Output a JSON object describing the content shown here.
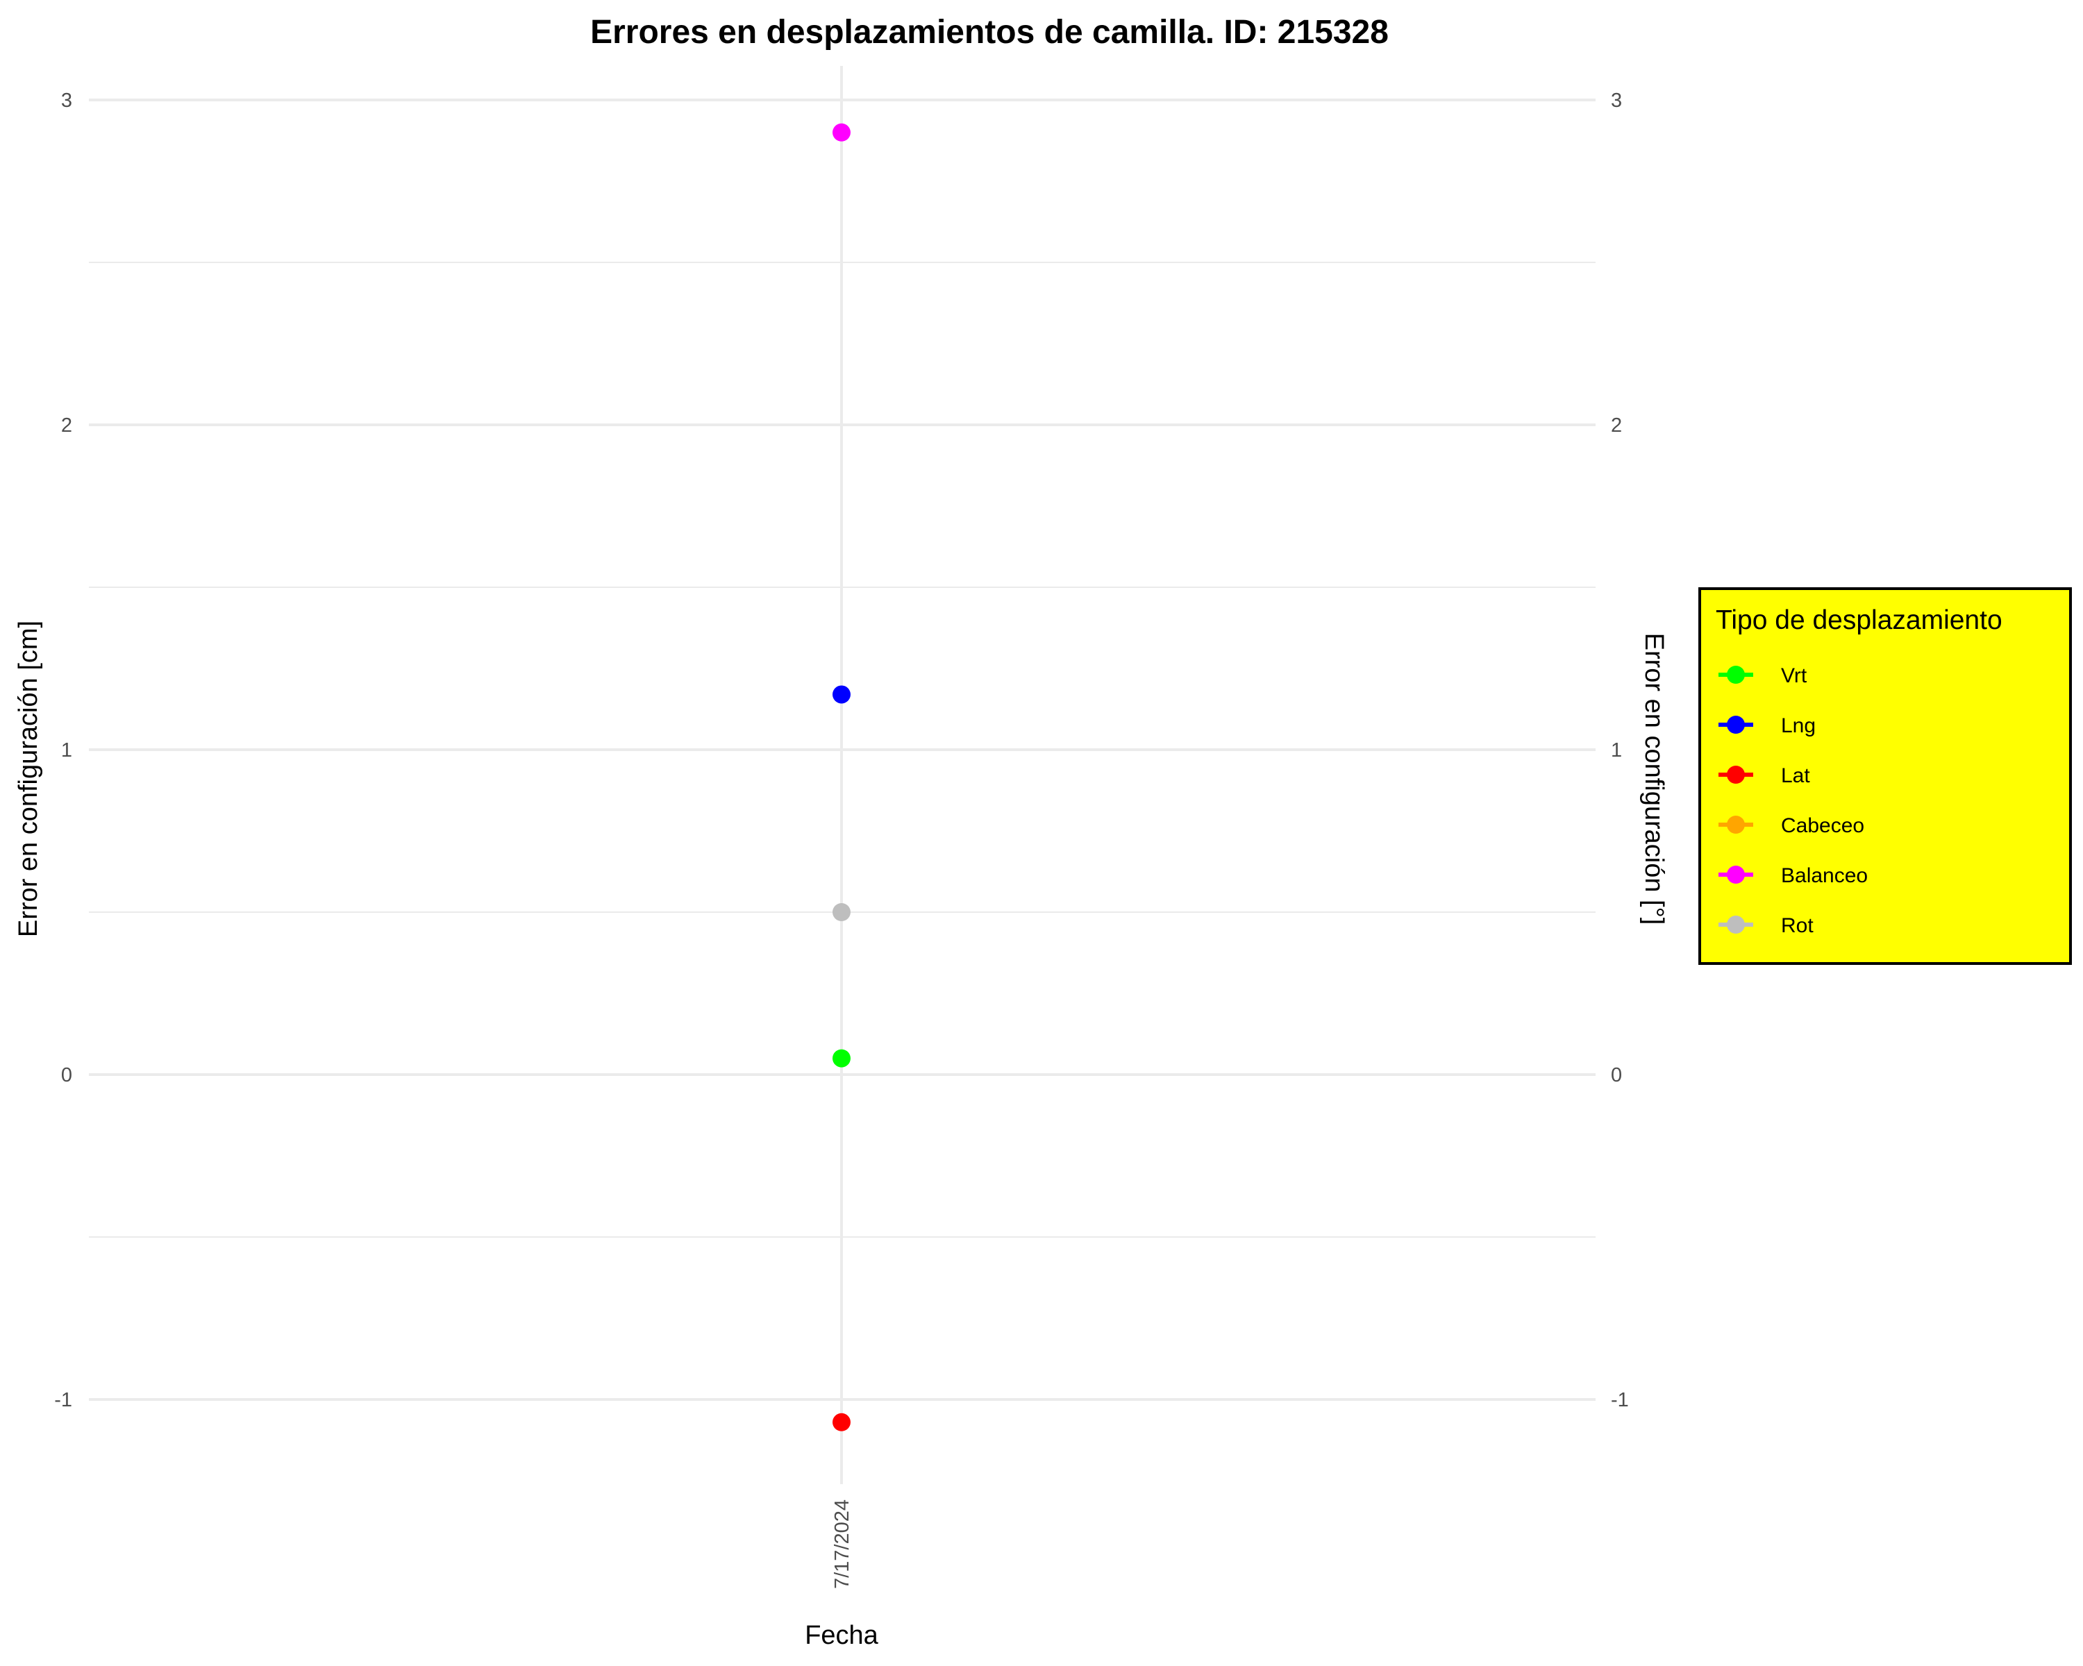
{
  "chart_data": {
    "type": "scatter",
    "title": "Errores en desplazamientos de camilla. ID: 215328",
    "xlabel": "Fecha",
    "ylabel_left": "Error en configuración [cm]",
    "ylabel_right": "Error en configuración [°]",
    "categories": [
      "7/17/2024"
    ],
    "ylim": [
      -1.3,
      3.1
    ],
    "yticks": [
      "3",
      "2",
      "1",
      "0",
      "-1"
    ],
    "ytick_values": [
      3,
      2,
      1,
      0,
      -1
    ],
    "grid": true,
    "legend": {
      "title": "Tipo de desplazamiento",
      "placement": "right",
      "background": "#ffff00",
      "border": "#000000"
    },
    "series": [
      {
        "name": "Vrt",
        "color": "#00ff00",
        "values": [
          0.05
        ]
      },
      {
        "name": "Lng",
        "color": "#0000ff",
        "values": [
          1.17
        ]
      },
      {
        "name": "Lat",
        "color": "#ff0000",
        "values": [
          -1.07
        ]
      },
      {
        "name": "Cabeceo",
        "color": "#ffa500",
        "values": [
          null
        ]
      },
      {
        "name": "Balanceo",
        "color": "#ff00ff",
        "values": [
          2.9
        ]
      },
      {
        "name": "Rot",
        "color": "#bebebe",
        "values": [
          0.5
        ]
      }
    ]
  }
}
